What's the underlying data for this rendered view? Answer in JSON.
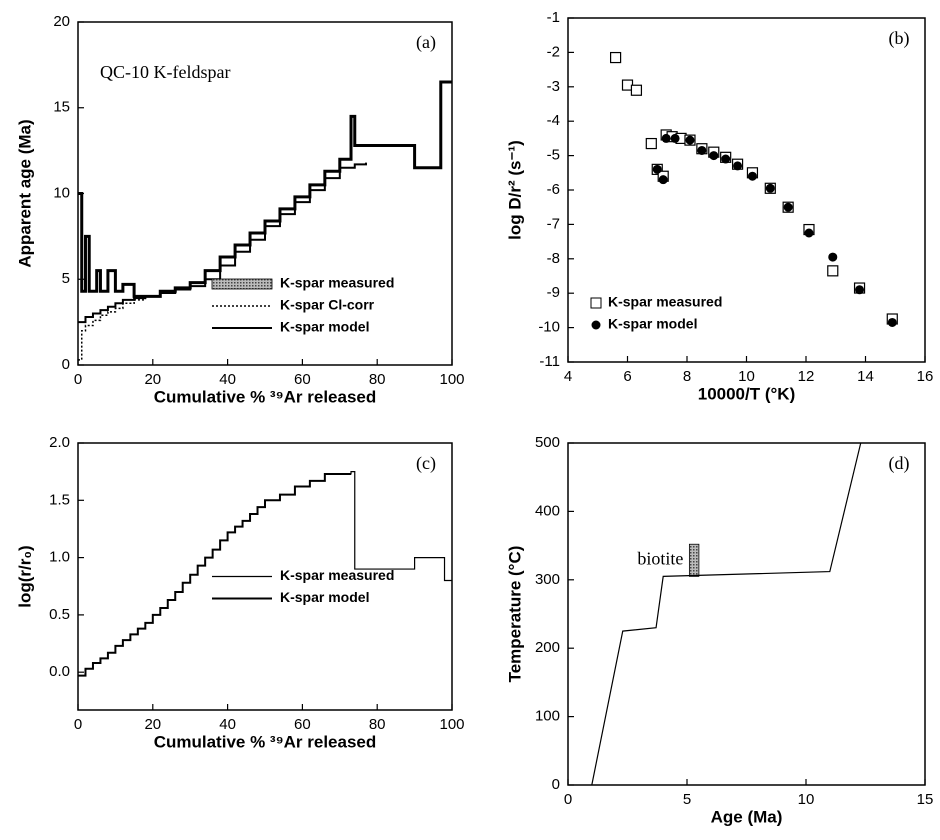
{
  "chart_data": [
    {
      "type": "line",
      "step": true,
      "panel_label": "(a)",
      "title": "QC-10 K-feldspar",
      "xlabel": "Cumulative % ³⁹Ar released",
      "ylabel": "Apparent age (Ma)",
      "xlim": [
        0,
        100
      ],
      "ylim": [
        0,
        20
      ],
      "xticks": [
        0,
        20,
        40,
        60,
        80,
        100
      ],
      "yticks": [
        0,
        5,
        10,
        15,
        20
      ],
      "legend": "lower right",
      "series": [
        {
          "name": "K-spar measured",
          "color": "#000000",
          "style": "bold",
          "x": [
            0,
            1,
            2,
            3,
            5,
            6,
            8,
            10,
            12,
            15,
            18,
            22,
            26,
            30,
            34,
            38,
            42,
            46,
            50,
            54,
            58,
            62,
            66,
            70,
            73,
            74,
            90,
            97,
            99,
            100
          ],
          "values": [
            10,
            4.3,
            7.5,
            4.3,
            5.5,
            4.3,
            5.5,
            4.3,
            4.7,
            4.0,
            4.0,
            4.3,
            4.5,
            4.8,
            5.5,
            6.3,
            7.0,
            7.7,
            8.4,
            9.1,
            9.8,
            10.5,
            11.3,
            12.0,
            14.5,
            12.8,
            11.5,
            16.5,
            16.5,
            16.5
          ]
        },
        {
          "name": "K-spar Cl-corr",
          "color": "#000000",
          "style": "dotted",
          "x": [
            0,
            1,
            2,
            4,
            6,
            8,
            10,
            12,
            15,
            18
          ],
          "values": [
            0.3,
            2.0,
            2.3,
            2.6,
            2.9,
            3.1,
            3.3,
            3.6,
            3.8,
            4.0
          ]
        },
        {
          "name": "K-spar model",
          "color": "#000000",
          "style": "solid",
          "x": [
            0,
            2,
            4,
            6,
            8,
            10,
            12,
            15,
            18,
            22,
            26,
            30,
            34,
            38,
            42,
            46,
            50,
            54,
            58,
            62,
            66,
            70,
            74,
            77
          ],
          "values": [
            2.5,
            2.8,
            3.0,
            3.2,
            3.4,
            3.6,
            3.8,
            3.9,
            4.0,
            4.2,
            4.4,
            4.6,
            5.0,
            5.8,
            6.6,
            7.3,
            8.1,
            8.8,
            9.5,
            10.2,
            10.9,
            11.5,
            11.7,
            11.8
          ]
        }
      ]
    },
    {
      "type": "scatter",
      "panel_label": "(b)",
      "xlabel": "10000/T  (°K)",
      "ylabel": "log D/r²  (s⁻¹)",
      "xlim": [
        4,
        16
      ],
      "ylim": [
        -11,
        -1
      ],
      "xticks": [
        4,
        6,
        8,
        10,
        12,
        14,
        16
      ],
      "yticks": [
        -11,
        -10,
        -9,
        -8,
        -7,
        -6,
        -5,
        -4,
        -3,
        -2,
        -1
      ],
      "legend": "lower left",
      "series": [
        {
          "name": "K-spar measured",
          "color": "#000000",
          "marker": "square-open",
          "x": [
            5.6,
            6.0,
            6.3,
            6.8,
            7.0,
            7.2,
            7.3,
            7.5,
            7.8,
            8.1,
            8.5,
            8.9,
            9.3,
            9.7,
            10.2,
            10.8,
            11.4,
            12.1,
            12.9,
            13.8,
            14.9
          ],
          "values": [
            -2.15,
            -2.95,
            -3.1,
            -4.65,
            -5.4,
            -5.6,
            -4.4,
            -4.45,
            -4.5,
            -4.55,
            -4.8,
            -4.9,
            -5.05,
            -5.25,
            -5.5,
            -5.95,
            -6.5,
            -7.15,
            -8.35,
            -8.85,
            -9.75
          ]
        },
        {
          "name": "K-spar model",
          "color": "#000000",
          "marker": "circle",
          "x": [
            7.0,
            7.2,
            7.3,
            7.6,
            8.1,
            8.5,
            8.9,
            9.3,
            9.7,
            10.2,
            10.8,
            11.4,
            12.1,
            12.9,
            13.8,
            14.9
          ],
          "values": [
            -5.4,
            -5.7,
            -4.5,
            -4.5,
            -4.55,
            -4.85,
            -5.0,
            -5.1,
            -5.3,
            -5.6,
            -5.95,
            -6.5,
            -7.25,
            -7.95,
            -8.9,
            -9.85
          ]
        }
      ]
    },
    {
      "type": "line",
      "step": true,
      "panel_label": "(c)",
      "xlabel": "Cumulative % ³⁹Ar released",
      "ylabel": "log(r/r₀)",
      "xlim": [
        0,
        100
      ],
      "ylim": [
        -0.33,
        2.0
      ],
      "xticks": [
        0,
        20,
        40,
        60,
        80,
        100
      ],
      "yticks": [
        {
          "value": 0,
          "label": "0.0"
        },
        0.5,
        {
          "value": 1,
          "label": "1.0"
        },
        1.5,
        {
          "value": 2,
          "label": "2.0"
        }
      ],
      "legend": "center right",
      "series": [
        {
          "name": "K-spar measured",
          "color": "#000000",
          "style": "thin",
          "x": [
            0,
            2,
            4,
            6,
            8,
            10,
            12,
            14,
            16,
            18,
            20,
            22,
            24,
            26,
            28,
            30,
            32,
            34,
            36,
            38,
            40,
            42,
            44,
            46,
            48,
            50,
            54,
            58,
            62,
            66,
            73,
            74,
            90,
            98,
            100
          ],
          "values": [
            -0.03,
            0.03,
            0.08,
            0.12,
            0.17,
            0.23,
            0.28,
            0.33,
            0.38,
            0.43,
            0.5,
            0.56,
            0.63,
            0.7,
            0.78,
            0.85,
            0.93,
            1.0,
            1.07,
            1.15,
            1.22,
            1.27,
            1.32,
            1.38,
            1.44,
            1.5,
            1.55,
            1.62,
            1.67,
            1.73,
            1.75,
            0.9,
            1.0,
            0.8,
            0.8
          ]
        },
        {
          "name": "K-spar model",
          "color": "#000000",
          "style": "solid",
          "x": [
            0,
            2,
            4,
            6,
            8,
            10,
            12,
            14,
            16,
            18,
            20,
            22,
            24,
            26,
            28,
            30,
            32,
            34,
            36,
            38,
            40,
            42,
            44,
            46,
            48,
            50,
            54,
            58,
            62,
            66,
            73
          ],
          "values": [
            -0.03,
            0.03,
            0.08,
            0.12,
            0.17,
            0.23,
            0.28,
            0.33,
            0.38,
            0.43,
            0.5,
            0.56,
            0.63,
            0.7,
            0.78,
            0.85,
            0.93,
            1.0,
            1.07,
            1.15,
            1.22,
            1.27,
            1.32,
            1.38,
            1.44,
            1.5,
            1.55,
            1.62,
            1.67,
            1.73,
            1.73
          ]
        }
      ]
    },
    {
      "type": "line",
      "panel_label": "(d)",
      "xlabel": "Age  (Ma)",
      "ylabel": "Temperature  (°C)",
      "xlim": [
        0,
        15
      ],
      "ylim": [
        0,
        500
      ],
      "xticks": [
        0,
        5,
        10,
        15
      ],
      "yticks": [
        0,
        100,
        200,
        300,
        400,
        500
      ],
      "biotite": {
        "label": "biotite",
        "x": [
          5.1,
          5.5
        ],
        "y": [
          305,
          352
        ]
      },
      "series": [
        {
          "color": "#000000",
          "style": "thin",
          "x": [
            1.0,
            2.3,
            3.7,
            4.0,
            11.0,
            12.3
          ],
          "values": [
            0,
            225,
            230,
            305,
            312,
            500
          ]
        }
      ]
    }
  ]
}
